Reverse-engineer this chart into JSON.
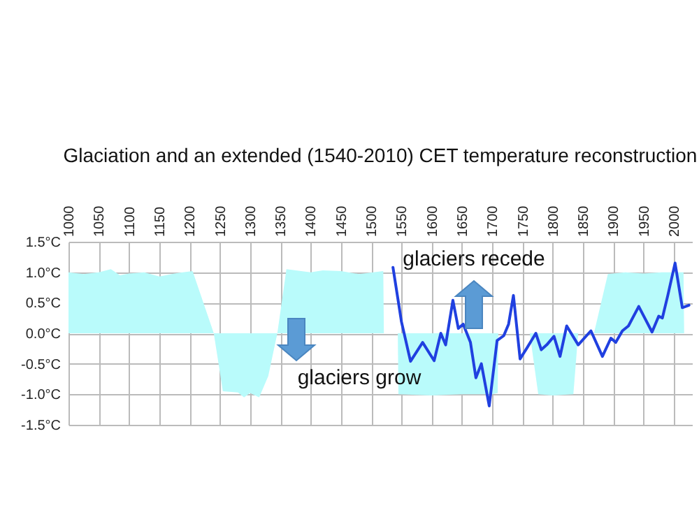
{
  "chart_data": {
    "type": "line",
    "title": "Glaciation and an extended (1540-2010) CET temperature reconstruction",
    "xlim": [
      1000,
      2030
    ],
    "xticks": [
      1000,
      1050,
      1100,
      1150,
      1200,
      1250,
      1300,
      1350,
      1400,
      1450,
      1500,
      1550,
      1600,
      1650,
      1700,
      1750,
      1800,
      1850,
      1900,
      1950,
      2000
    ],
    "ylim": [
      -1.5,
      1.5
    ],
    "yticks": [
      {
        "value": -1.5,
        "label": "-1.5°C"
      },
      {
        "value": -1.0,
        "label": "-1.0°C"
      },
      {
        "value": -0.5,
        "label": "-0.5°C"
      },
      {
        "value": 0,
        "label": "0.0°C"
      },
      {
        "value": 0.5,
        "label": "0.5°C"
      },
      {
        "value": 1.0,
        "label": "1.0°C"
      },
      {
        "value": 1.5,
        "label": "1.5°C"
      }
    ],
    "grid": true,
    "series": [
      {
        "type": "area",
        "color": "#b9fbfb",
        "x": [
          1000,
          1025,
          1050,
          1070,
          1085,
          1100,
          1125,
          1150,
          1175,
          1205,
          1240,
          1255,
          1280,
          1290,
          1300,
          1315,
          1330,
          1345,
          1360,
          1400,
          1420,
          1450,
          1480,
          1520,
          1521,
          1544,
          1545,
          1600,
          1650,
          1700,
          1709,
          1710,
          1762,
          1776,
          1800,
          1834,
          1842,
          1868,
          1891,
          1920,
          1950,
          1980,
          2016,
          2017
        ],
        "values": [
          1.0,
          0.97,
          1.0,
          1.05,
          0.95,
          0.98,
          1.0,
          0.93,
          0.98,
          1.02,
          0,
          -0.95,
          -0.97,
          -1.05,
          -0.98,
          -1.05,
          -0.7,
          0,
          1.05,
          1.0,
          1.03,
          1.02,
          0.97,
          1.02,
          0,
          0,
          -1.0,
          -1.02,
          -1.0,
          -1.0,
          -0.98,
          0,
          0,
          -1.0,
          -1.02,
          -1.0,
          0,
          0,
          0.97,
          1.0,
          0.98,
          1.0,
          1.0,
          0
        ]
      },
      {
        "color": "#2040e0",
        "x": [
          1536,
          1550,
          1565,
          1585,
          1604,
          1615,
          1623,
          1635,
          1644,
          1652,
          1664,
          1673,
          1682,
          1695,
          1708,
          1719,
          1727,
          1735,
          1746,
          1758,
          1772,
          1781,
          1790,
          1802,
          1812,
          1823,
          1842,
          1863,
          1882,
          1896,
          1904,
          1915,
          1925,
          1942,
          1964,
          1975,
          1981,
          1990,
          2002,
          2014,
          2025
        ],
        "values": [
          1.08,
          0.19,
          -0.46,
          -0.15,
          -0.45,
          0.0,
          -0.19,
          0.54,
          0.08,
          0.15,
          -0.15,
          -0.73,
          -0.5,
          -1.19,
          -0.12,
          -0.04,
          0.15,
          0.62,
          -0.42,
          -0.23,
          0.0,
          -0.27,
          -0.19,
          -0.05,
          -0.38,
          0.12,
          -0.19,
          0.04,
          -0.38,
          -0.08,
          -0.15,
          0.04,
          0.12,
          0.44,
          0.02,
          0.28,
          0.25,
          0.62,
          1.15,
          0.42,
          0.46
        ]
      }
    ],
    "annotations": [
      "glaciers recede",
      "glaciers grow"
    ]
  }
}
